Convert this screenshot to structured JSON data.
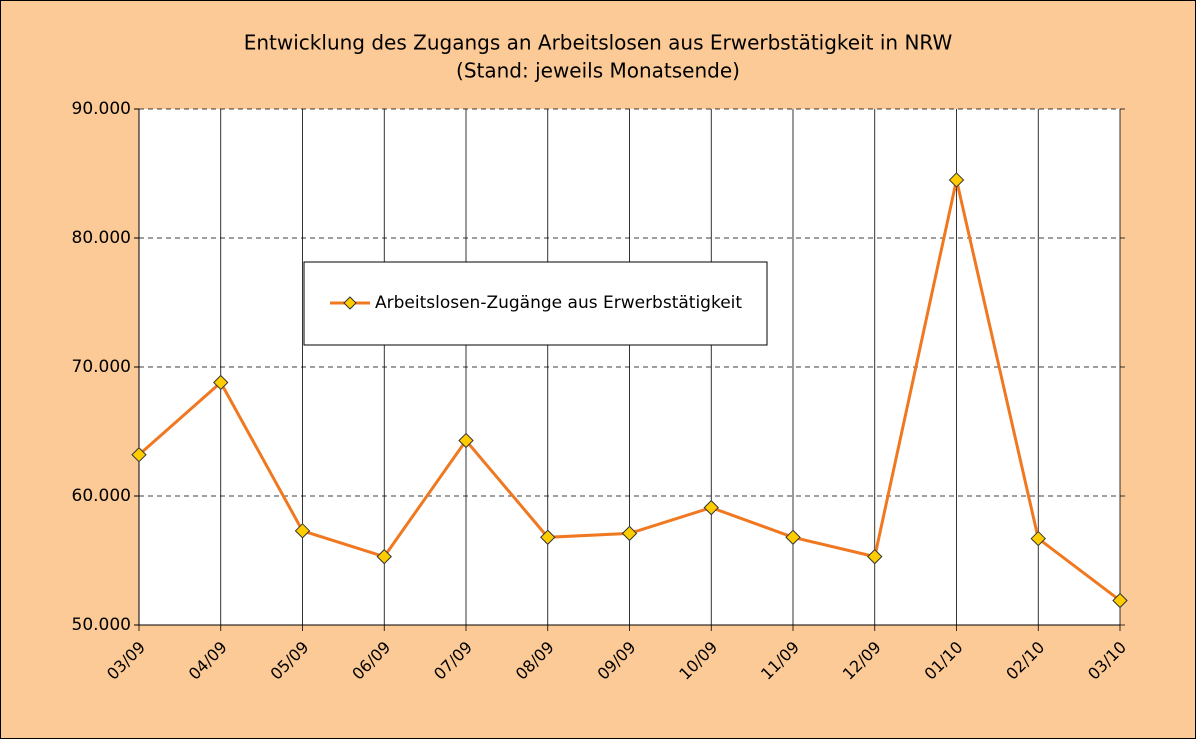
{
  "chart_data": {
    "type": "line",
    "title": "Entwicklung des Zugangs an Arbeitslosen aus Erwerbstätigkeit in NRW",
    "subtitle": "(Stand: jeweils Monatsende)",
    "categories": [
      "03/09",
      "04/09",
      "05/09",
      "06/09",
      "07/09",
      "08/09",
      "09/09",
      "10/09",
      "11/09",
      "12/09",
      "01/10",
      "02/10",
      "03/10"
    ],
    "series": [
      {
        "name": "Arbeitslosen-Zugänge aus Erwerbstätigkeit",
        "color": "#f07820",
        "marker_color": "#ffcc00",
        "values": [
          63200,
          68800,
          57300,
          55300,
          64300,
          56800,
          57100,
          59100,
          56800,
          55300,
          84500,
          56700,
          51900
        ]
      }
    ],
    "ylim": [
      50000,
      90000
    ],
    "yticks": [
      {
        "value": 50000,
        "label": "50.000"
      },
      {
        "value": 60000,
        "label": "60.000"
      },
      {
        "value": 70000,
        "label": "70.000"
      },
      {
        "value": 80000,
        "label": "80.000"
      },
      {
        "value": 90000,
        "label": "90.000"
      }
    ],
    "grid": true
  }
}
